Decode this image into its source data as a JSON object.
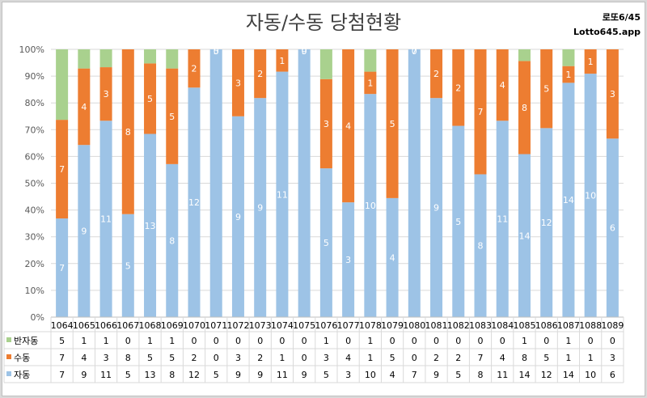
{
  "brand": {
    "line1": "로또6/45",
    "line2": "Lotto645.app"
  },
  "chart_data": {
    "type": "bar",
    "stacked": "percent",
    "title": "자동/수동 당첨현황",
    "categories": [
      "1064",
      "1065",
      "1066",
      "1067",
      "1068",
      "1069",
      "1070",
      "1071",
      "1072",
      "1073",
      "1074",
      "1075",
      "1076",
      "1077",
      "1078",
      "1079",
      "1080",
      "1081",
      "1082",
      "1083",
      "1084",
      "1085",
      "1086",
      "1087",
      "1088",
      "1089"
    ],
    "series": [
      {
        "name": "자동",
        "color": "#9dc3e6",
        "values": [
          7,
          9,
          11,
          5,
          13,
          8,
          12,
          5,
          9,
          9,
          11,
          9,
          5,
          3,
          10,
          4,
          7,
          9,
          5,
          8,
          11,
          14,
          12,
          14,
          10,
          6
        ]
      },
      {
        "name": "수동",
        "color": "#ed7d31",
        "values": [
          7,
          4,
          3,
          8,
          5,
          5,
          2,
          0,
          3,
          2,
          1,
          0,
          3,
          4,
          1,
          5,
          0,
          2,
          2,
          7,
          4,
          8,
          5,
          1,
          1,
          3
        ]
      },
      {
        "name": "반자동",
        "color": "#a9d18e",
        "values": [
          5,
          1,
          1,
          0,
          1,
          1,
          0,
          0,
          0,
          0,
          0,
          0,
          1,
          0,
          1,
          0,
          0,
          0,
          0,
          0,
          0,
          1,
          0,
          1,
          0,
          0
        ]
      }
    ],
    "yticks": [
      "0%",
      "10%",
      "20%",
      "30%",
      "40%",
      "50%",
      "60%",
      "70%",
      "80%",
      "90%",
      "100%"
    ],
    "ylim": [
      0,
      100
    ],
    "grid": true,
    "legend": "data-table"
  }
}
